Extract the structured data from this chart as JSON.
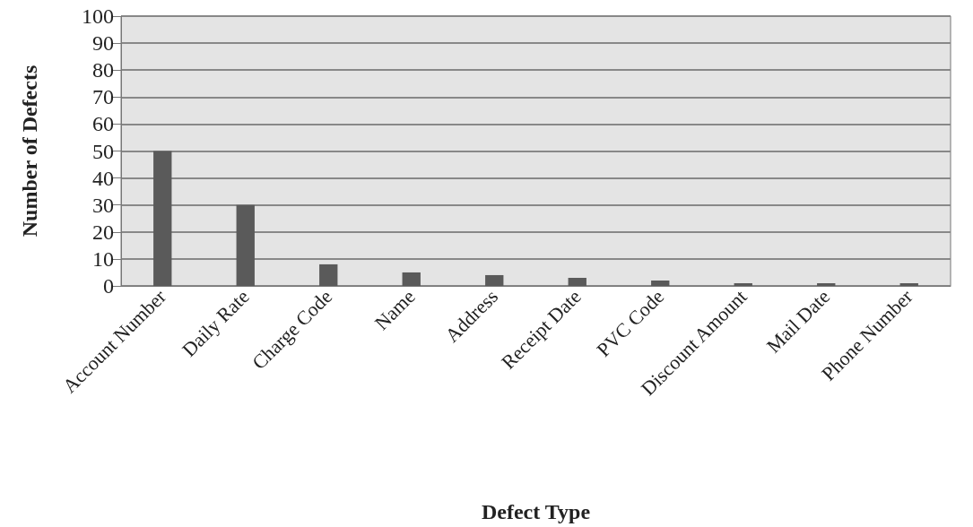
{
  "chart_data": {
    "type": "bar",
    "xlabel": "Defect Type",
    "ylabel": "Number of Defects",
    "categories": [
      "Account Number",
      "Daily Rate",
      "Charge Code",
      "Name",
      "Address",
      "Receipt Date",
      "PVC Code",
      "Discount Amount",
      "Mail Date",
      "Phone Number"
    ],
    "values": [
      50,
      30,
      8,
      5,
      4,
      3,
      2,
      1,
      1,
      1
    ],
    "color": "#5a5a5a",
    "ylim": [
      0,
      100
    ],
    "yticks": [
      0,
      10,
      20,
      30,
      40,
      50,
      60,
      70,
      80,
      90,
      100
    ],
    "grid": "y"
  }
}
